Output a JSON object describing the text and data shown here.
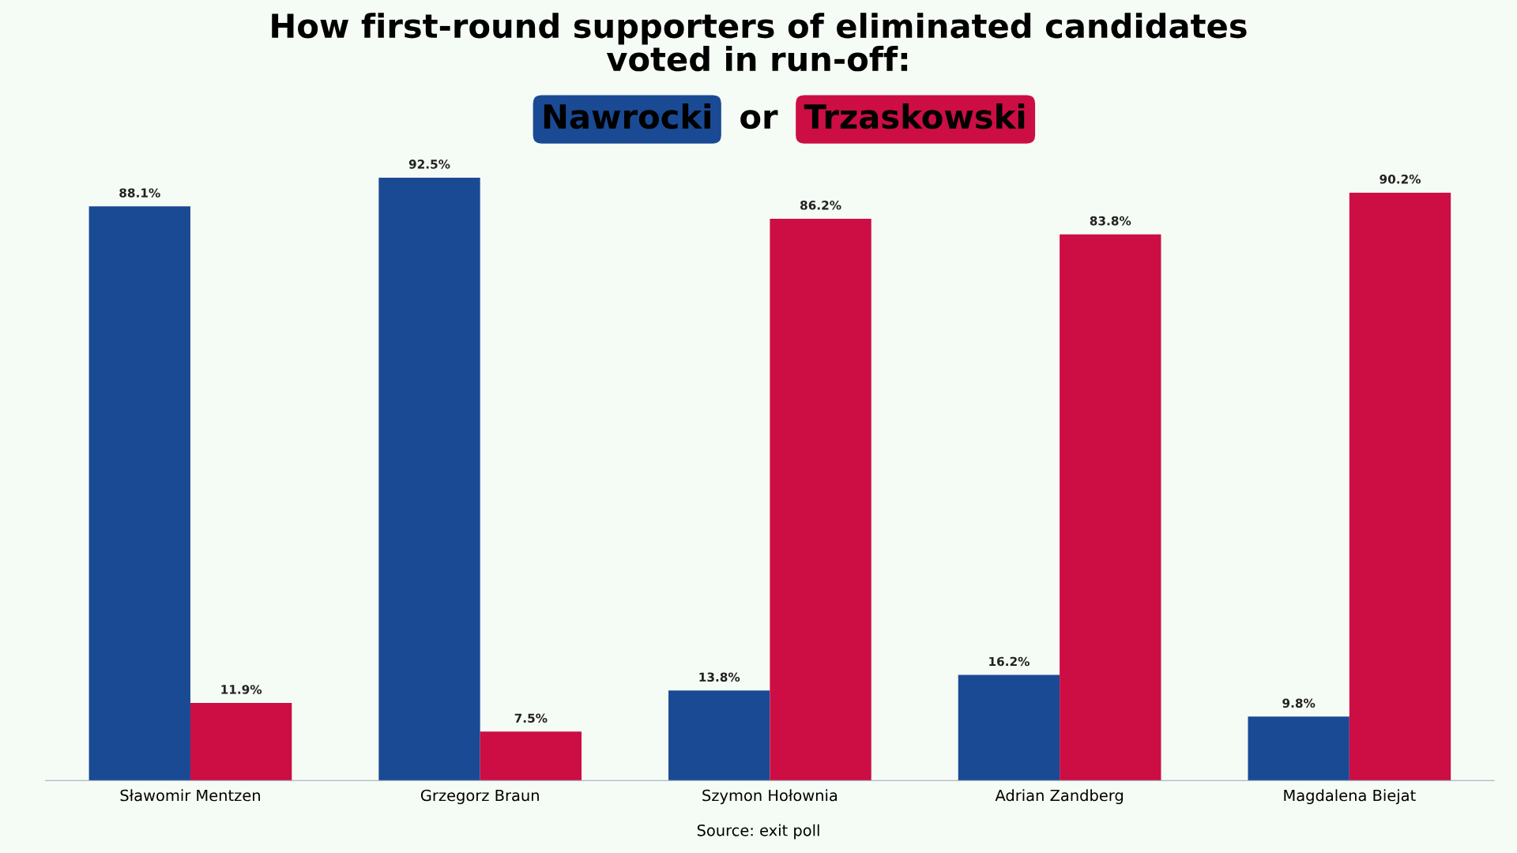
{
  "chart_data": {
    "type": "bar",
    "title": "How first-round supporters of eliminated candidates\nvoted in run-off:",
    "categories": [
      "Sławomir Mentzen",
      "Grzegorz Braun",
      "Szymon Hołownia",
      "Adrian Zandberg",
      "Magdalena Biejat"
    ],
    "series": [
      {
        "name": "Nawrocki",
        "color": "#1a4a94",
        "values": [
          88.1,
          92.5,
          13.8,
          16.2,
          9.8
        ],
        "value_labels": [
          "88.1%",
          "92.5%",
          "13.8%",
          "16.2%",
          "9.8%"
        ]
      },
      {
        "name": "Trzaskowski",
        "color": "#cc0e44",
        "values": [
          11.9,
          7.5,
          86.2,
          83.8,
          90.2
        ],
        "value_labels": [
          "11.9%",
          "7.5%",
          "86.2%",
          "83.8%",
          "90.2%"
        ]
      }
    ],
    "annotations": [
      "or",
      "Source: exit poll"
    ],
    "legend": "top",
    "grid": false
  }
}
